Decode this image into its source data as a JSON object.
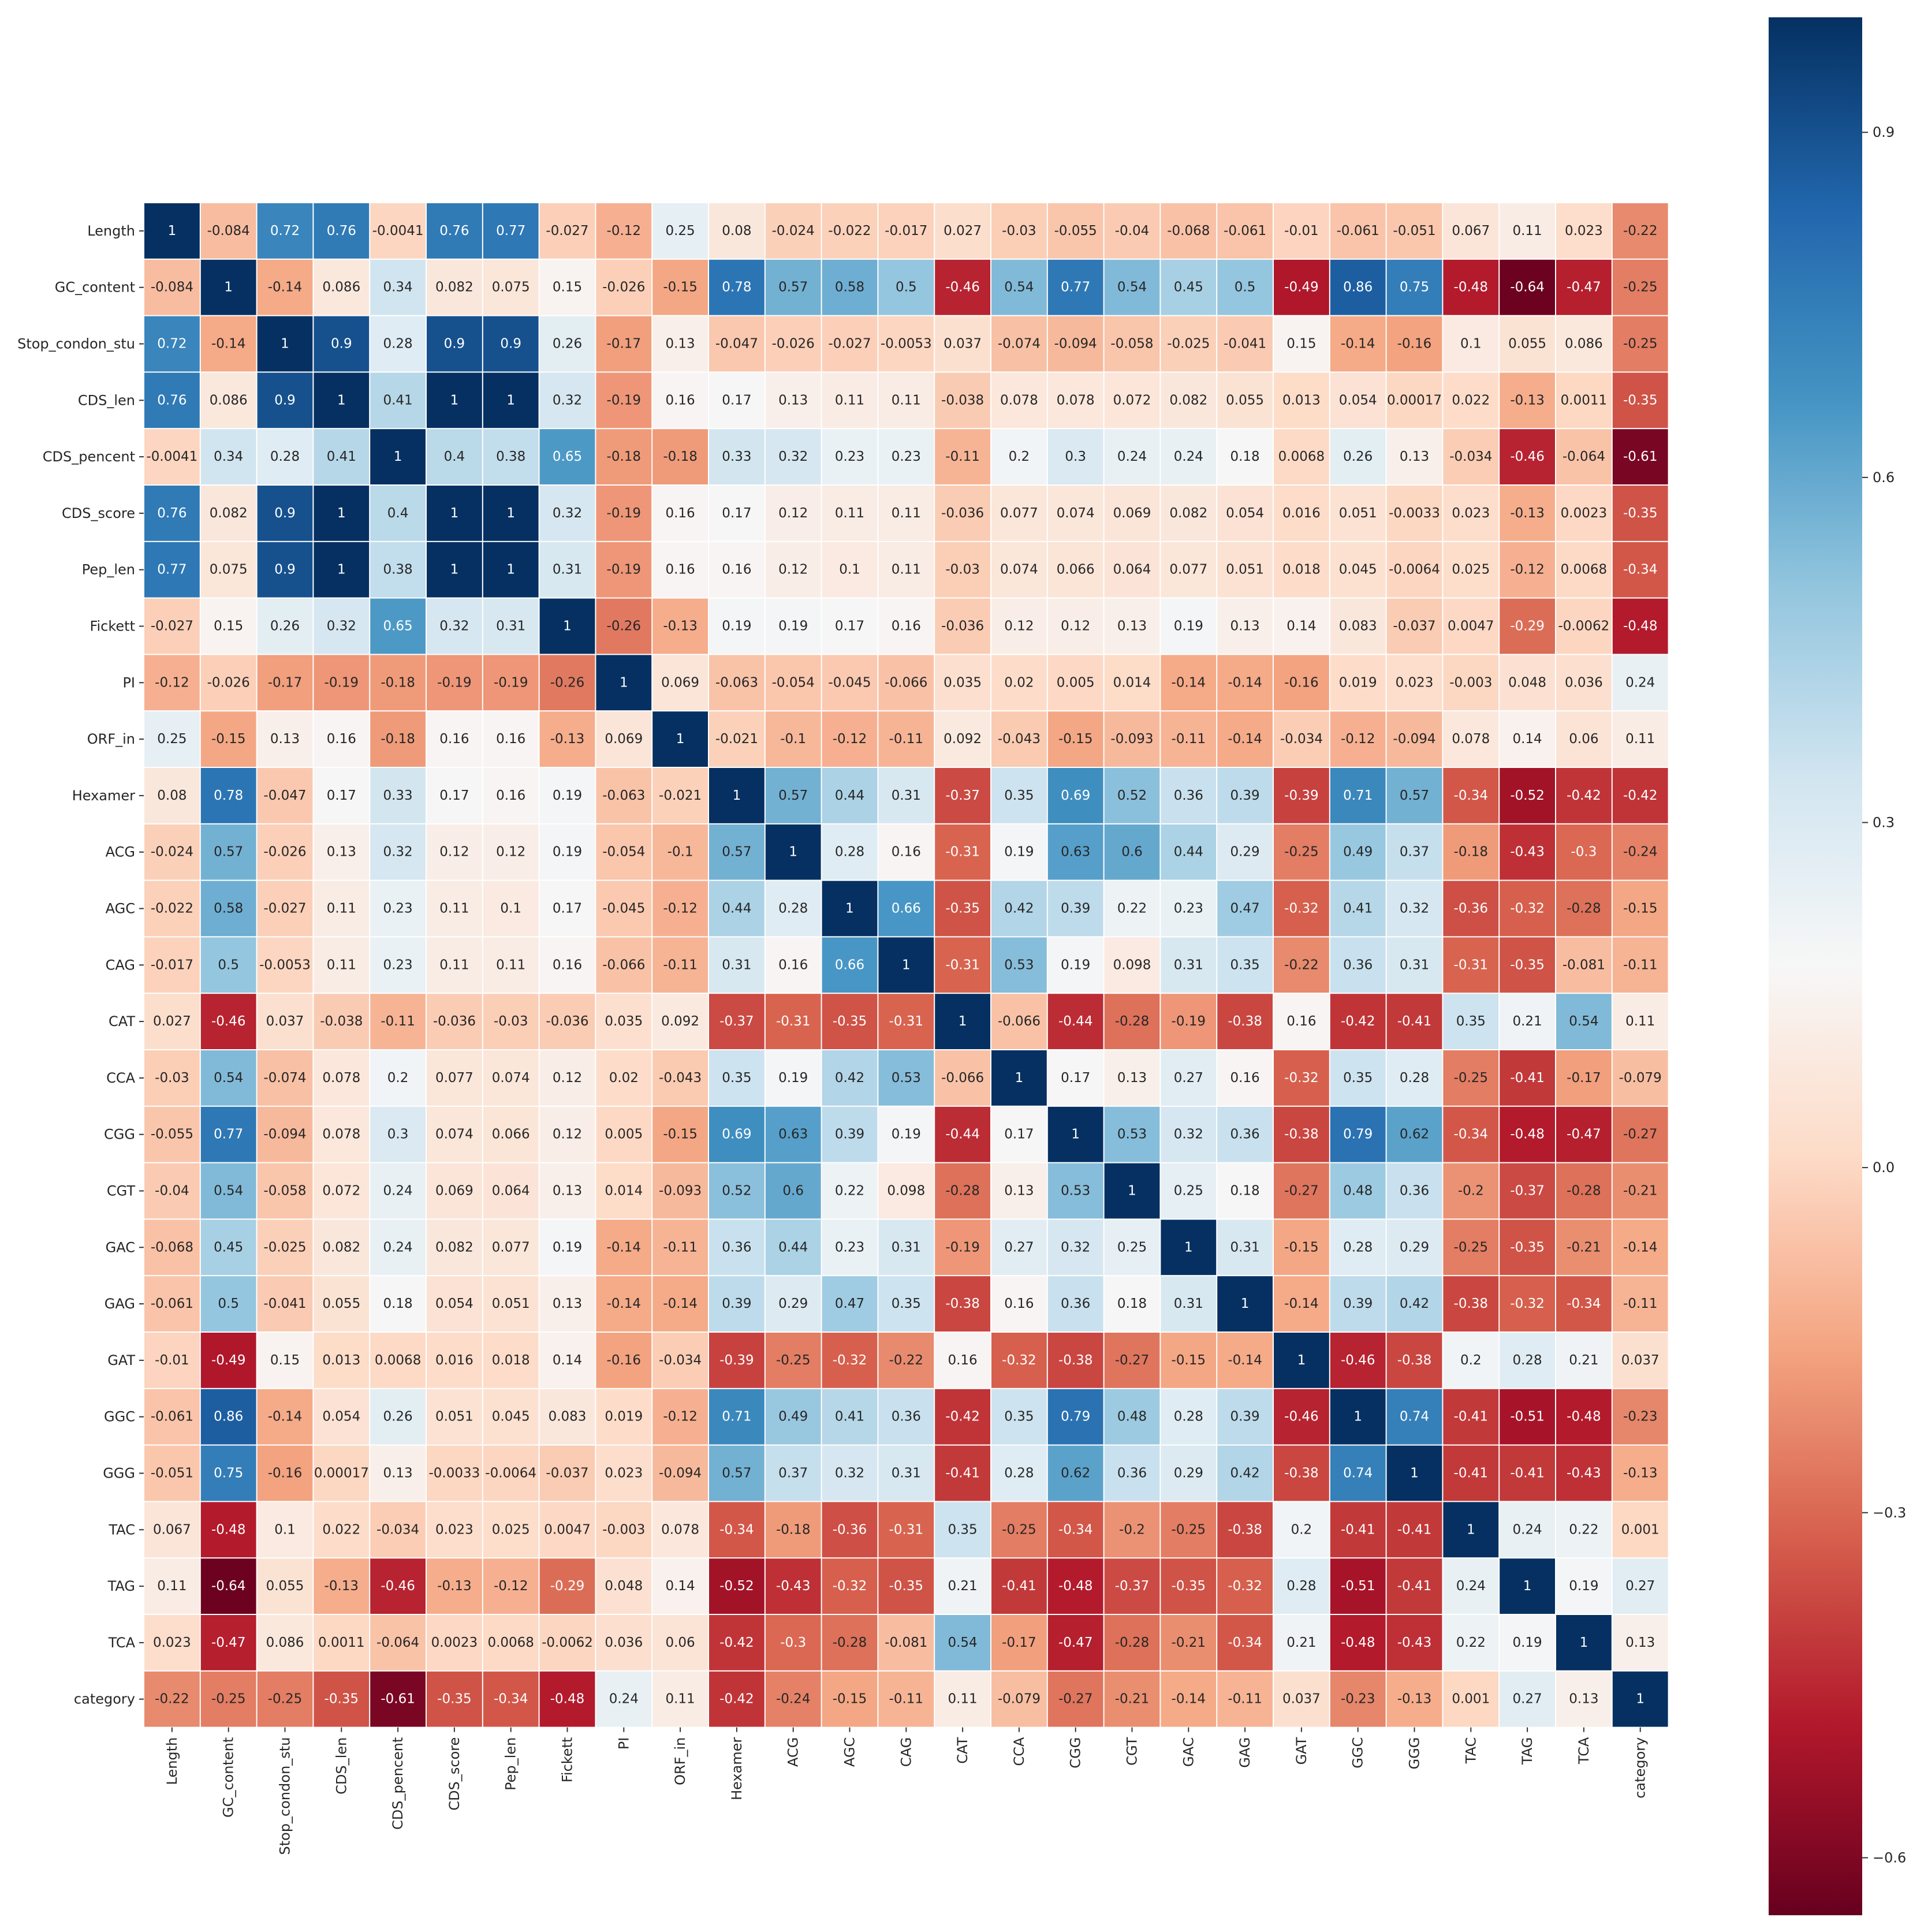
{
  "chart_data": {
    "type": "heatmap",
    "title": "",
    "xlabel": "",
    "ylabel": "",
    "colormap": "RdBu",
    "vmin": -0.65,
    "vmax": 1.0,
    "colorbar_ticks": [
      0.9,
      0.6,
      0.3,
      0.0,
      -0.3,
      -0.6
    ],
    "colorbar_tick_labels": [
      "0.9",
      "0.6",
      "0.3",
      "0.0",
      "−0.3",
      "−0.6"
    ],
    "labels": [
      "Length",
      "GC_content",
      "Stop_condon_stu",
      "CDS_len",
      "CDS_pencent",
      "CDS_score",
      "Pep_len",
      "Fickett",
      "PI",
      "ORF_in",
      "Hexamer",
      "ACG",
      "AGC",
      "CAG",
      "CAT",
      "CCA",
      "CGG",
      "CGT",
      "GAC",
      "GAG",
      "GAT",
      "GGC",
      "GGG",
      "TAC",
      "TAG",
      "TCA",
      "category"
    ],
    "matrix": [
      [
        "1",
        "-0.084",
        "0.72",
        "0.76",
        "-0.0041",
        "0.76",
        "0.77",
        "-0.027",
        "-0.12",
        "0.25",
        "0.08",
        "-0.024",
        "-0.022",
        "-0.017",
        "0.027",
        "-0.03",
        "-0.055",
        "-0.04",
        "-0.068",
        "-0.061",
        "-0.01",
        "-0.061",
        "-0.051",
        "0.067",
        "0.11",
        "0.023",
        "-0.22"
      ],
      [
        "-0.084",
        "1",
        "-0.14",
        "0.086",
        "0.34",
        "0.082",
        "0.075",
        "0.15",
        "-0.026",
        "-0.15",
        "0.78",
        "0.57",
        "0.58",
        "0.5",
        "-0.46",
        "0.54",
        "0.77",
        "0.54",
        "0.45",
        "0.5",
        "-0.49",
        "0.86",
        "0.75",
        "-0.48",
        "-0.64",
        "-0.47",
        "-0.25"
      ],
      [
        "0.72",
        "-0.14",
        "1",
        "0.9",
        "0.28",
        "0.9",
        "0.9",
        "0.26",
        "-0.17",
        "0.13",
        "-0.047",
        "-0.026",
        "-0.027",
        "-0.0053",
        "0.037",
        "-0.074",
        "-0.094",
        "-0.058",
        "-0.025",
        "-0.041",
        "0.15",
        "-0.14",
        "-0.16",
        "0.1",
        "0.055",
        "0.086",
        "-0.25"
      ],
      [
        "0.76",
        "0.086",
        "0.9",
        "1",
        "0.41",
        "1",
        "1",
        "0.32",
        "-0.19",
        "0.16",
        "0.17",
        "0.13",
        "0.11",
        "0.11",
        "-0.038",
        "0.078",
        "0.078",
        "0.072",
        "0.082",
        "0.055",
        "0.013",
        "0.054",
        "0.00017",
        "0.022",
        "-0.13",
        "0.0011",
        "-0.35"
      ],
      [
        "-0.0041",
        "0.34",
        "0.28",
        "0.41",
        "1",
        "0.4",
        "0.38",
        "0.65",
        "-0.18",
        "-0.18",
        "0.33",
        "0.32",
        "0.23",
        "0.23",
        "-0.11",
        "0.2",
        "0.3",
        "0.24",
        "0.24",
        "0.18",
        "0.0068",
        "0.26",
        "0.13",
        "-0.034",
        "-0.46",
        "-0.064",
        "-0.61"
      ],
      [
        "0.76",
        "0.082",
        "0.9",
        "1",
        "0.4",
        "1",
        "1",
        "0.32",
        "-0.19",
        "0.16",
        "0.17",
        "0.12",
        "0.11",
        "0.11",
        "-0.036",
        "0.077",
        "0.074",
        "0.069",
        "0.082",
        "0.054",
        "0.016",
        "0.051",
        "-0.0033",
        "0.023",
        "-0.13",
        "0.0023",
        "-0.35"
      ],
      [
        "0.77",
        "0.075",
        "0.9",
        "1",
        "0.38",
        "1",
        "1",
        "0.31",
        "-0.19",
        "0.16",
        "0.16",
        "0.12",
        "0.1",
        "0.11",
        "-0.03",
        "0.074",
        "0.066",
        "0.064",
        "0.077",
        "0.051",
        "0.018",
        "0.045",
        "-0.0064",
        "0.025",
        "-0.12",
        "0.0068",
        "-0.34"
      ],
      [
        "-0.027",
        "0.15",
        "0.26",
        "0.32",
        "0.65",
        "0.32",
        "0.31",
        "1",
        "-0.26",
        "-0.13",
        "0.19",
        "0.19",
        "0.17",
        "0.16",
        "-0.036",
        "0.12",
        "0.12",
        "0.13",
        "0.19",
        "0.13",
        "0.14",
        "0.083",
        "-0.037",
        "0.0047",
        "-0.29",
        "-0.0062",
        "-0.48"
      ],
      [
        "-0.12",
        "-0.026",
        "-0.17",
        "-0.19",
        "-0.18",
        "-0.19",
        "-0.19",
        "-0.26",
        "1",
        "0.069",
        "-0.063",
        "-0.054",
        "-0.045",
        "-0.066",
        "0.035",
        "0.02",
        "0.005",
        "0.014",
        "-0.14",
        "-0.14",
        "-0.16",
        "0.019",
        "0.023",
        "-0.003",
        "0.048",
        "0.036",
        "0.24"
      ],
      [
        "0.25",
        "-0.15",
        "0.13",
        "0.16",
        "-0.18",
        "0.16",
        "0.16",
        "-0.13",
        "0.069",
        "1",
        "-0.021",
        "-0.1",
        "-0.12",
        "-0.11",
        "0.092",
        "-0.043",
        "-0.15",
        "-0.093",
        "-0.11",
        "-0.14",
        "-0.034",
        "-0.12",
        "-0.094",
        "0.078",
        "0.14",
        "0.06",
        "0.11"
      ],
      [
        "0.08",
        "0.78",
        "-0.047",
        "0.17",
        "0.33",
        "0.17",
        "0.16",
        "0.19",
        "-0.063",
        "-0.021",
        "1",
        "0.57",
        "0.44",
        "0.31",
        "-0.37",
        "0.35",
        "0.69",
        "0.52",
        "0.36",
        "0.39",
        "-0.39",
        "0.71",
        "0.57",
        "-0.34",
        "-0.52",
        "-0.42",
        "-0.42"
      ],
      [
        "-0.024",
        "0.57",
        "-0.026",
        "0.13",
        "0.32",
        "0.12",
        "0.12",
        "0.19",
        "-0.054",
        "-0.1",
        "0.57",
        "1",
        "0.28",
        "0.16",
        "-0.31",
        "0.19",
        "0.63",
        "0.6",
        "0.44",
        "0.29",
        "-0.25",
        "0.49",
        "0.37",
        "-0.18",
        "-0.43",
        "-0.3",
        "-0.24"
      ],
      [
        "-0.022",
        "0.58",
        "-0.027",
        "0.11",
        "0.23",
        "0.11",
        "0.1",
        "0.17",
        "-0.045",
        "-0.12",
        "0.44",
        "0.28",
        "1",
        "0.66",
        "-0.35",
        "0.42",
        "0.39",
        "0.22",
        "0.23",
        "0.47",
        "-0.32",
        "0.41",
        "0.32",
        "-0.36",
        "-0.32",
        "-0.28",
        "-0.15"
      ],
      [
        "-0.017",
        "0.5",
        "-0.0053",
        "0.11",
        "0.23",
        "0.11",
        "0.11",
        "0.16",
        "-0.066",
        "-0.11",
        "0.31",
        "0.16",
        "0.66",
        "1",
        "-0.31",
        "0.53",
        "0.19",
        "0.098",
        "0.31",
        "0.35",
        "-0.22",
        "0.36",
        "0.31",
        "-0.31",
        "-0.35",
        "-0.081",
        "-0.11"
      ],
      [
        "0.027",
        "-0.46",
        "0.037",
        "-0.038",
        "-0.11",
        "-0.036",
        "-0.03",
        "-0.036",
        "0.035",
        "0.092",
        "-0.37",
        "-0.31",
        "-0.35",
        "-0.31",
        "1",
        "-0.066",
        "-0.44",
        "-0.28",
        "-0.19",
        "-0.38",
        "0.16",
        "-0.42",
        "-0.41",
        "0.35",
        "0.21",
        "0.54",
        "0.11"
      ],
      [
        "-0.03",
        "0.54",
        "-0.074",
        "0.078",
        "0.2",
        "0.077",
        "0.074",
        "0.12",
        "0.02",
        "-0.043",
        "0.35",
        "0.19",
        "0.42",
        "0.53",
        "-0.066",
        "1",
        "0.17",
        "0.13",
        "0.27",
        "0.16",
        "-0.32",
        "0.35",
        "0.28",
        "-0.25",
        "-0.41",
        "-0.17",
        "-0.079"
      ],
      [
        "-0.055",
        "0.77",
        "-0.094",
        "0.078",
        "0.3",
        "0.074",
        "0.066",
        "0.12",
        "0.005",
        "-0.15",
        "0.69",
        "0.63",
        "0.39",
        "0.19",
        "-0.44",
        "0.17",
        "1",
        "0.53",
        "0.32",
        "0.36",
        "-0.38",
        "0.79",
        "0.62",
        "-0.34",
        "-0.48",
        "-0.47",
        "-0.27"
      ],
      [
        "-0.04",
        "0.54",
        "-0.058",
        "0.072",
        "0.24",
        "0.069",
        "0.064",
        "0.13",
        "0.014",
        "-0.093",
        "0.52",
        "0.6",
        "0.22",
        "0.098",
        "-0.28",
        "0.13",
        "0.53",
        "1",
        "0.25",
        "0.18",
        "-0.27",
        "0.48",
        "0.36",
        "-0.2",
        "-0.37",
        "-0.28",
        "-0.21"
      ],
      [
        "-0.068",
        "0.45",
        "-0.025",
        "0.082",
        "0.24",
        "0.082",
        "0.077",
        "0.19",
        "-0.14",
        "-0.11",
        "0.36",
        "0.44",
        "0.23",
        "0.31",
        "-0.19",
        "0.27",
        "0.32",
        "0.25",
        "1",
        "0.31",
        "-0.15",
        "0.28",
        "0.29",
        "-0.25",
        "-0.35",
        "-0.21",
        "-0.14"
      ],
      [
        "-0.061",
        "0.5",
        "-0.041",
        "0.055",
        "0.18",
        "0.054",
        "0.051",
        "0.13",
        "-0.14",
        "-0.14",
        "0.39",
        "0.29",
        "0.47",
        "0.35",
        "-0.38",
        "0.16",
        "0.36",
        "0.18",
        "0.31",
        "1",
        "-0.14",
        "0.39",
        "0.42",
        "-0.38",
        "-0.32",
        "-0.34",
        "-0.11"
      ],
      [
        "-0.01",
        "-0.49",
        "0.15",
        "0.013",
        "0.0068",
        "0.016",
        "0.018",
        "0.14",
        "-0.16",
        "-0.034",
        "-0.39",
        "-0.25",
        "-0.32",
        "-0.22",
        "0.16",
        "-0.32",
        "-0.38",
        "-0.27",
        "-0.15",
        "-0.14",
        "1",
        "-0.46",
        "-0.38",
        "0.2",
        "0.28",
        "0.21",
        "0.037"
      ],
      [
        "-0.061",
        "0.86",
        "-0.14",
        "0.054",
        "0.26",
        "0.051",
        "0.045",
        "0.083",
        "0.019",
        "-0.12",
        "0.71",
        "0.49",
        "0.41",
        "0.36",
        "-0.42",
        "0.35",
        "0.79",
        "0.48",
        "0.28",
        "0.39",
        "-0.46",
        "1",
        "0.74",
        "-0.41",
        "-0.51",
        "-0.48",
        "-0.23"
      ],
      [
        "-0.051",
        "0.75",
        "-0.16",
        "0.00017",
        "0.13",
        "-0.0033",
        "-0.0064",
        "-0.037",
        "0.023",
        "-0.094",
        "0.57",
        "0.37",
        "0.32",
        "0.31",
        "-0.41",
        "0.28",
        "0.62",
        "0.36",
        "0.29",
        "0.42",
        "-0.38",
        "0.74",
        "1",
        "-0.41",
        "-0.41",
        "-0.43",
        "-0.13"
      ],
      [
        "0.067",
        "-0.48",
        "0.1",
        "0.022",
        "-0.034",
        "0.023",
        "0.025",
        "0.0047",
        "-0.003",
        "0.078",
        "-0.34",
        "-0.18",
        "-0.36",
        "-0.31",
        "0.35",
        "-0.25",
        "-0.34",
        "-0.2",
        "-0.25",
        "-0.38",
        "0.2",
        "-0.41",
        "-0.41",
        "1",
        "0.24",
        "0.22",
        "0.001"
      ],
      [
        "0.11",
        "-0.64",
        "0.055",
        "-0.13",
        "-0.46",
        "-0.13",
        "-0.12",
        "-0.29",
        "0.048",
        "0.14",
        "-0.52",
        "-0.43",
        "-0.32",
        "-0.35",
        "0.21",
        "-0.41",
        "-0.48",
        "-0.37",
        "-0.35",
        "-0.32",
        "0.28",
        "-0.51",
        "-0.41",
        "0.24",
        "1",
        "0.19",
        "0.27"
      ],
      [
        "0.023",
        "-0.47",
        "0.086",
        "0.0011",
        "-0.064",
        "0.0023",
        "0.0068",
        "-0.0062",
        "0.036",
        "0.06",
        "-0.42",
        "-0.3",
        "-0.28",
        "-0.081",
        "0.54",
        "-0.17",
        "-0.47",
        "-0.28",
        "-0.21",
        "-0.34",
        "0.21",
        "-0.48",
        "-0.43",
        "0.22",
        "0.19",
        "1",
        "0.13"
      ],
      [
        "-0.22",
        "-0.25",
        "-0.25",
        "-0.35",
        "-0.61",
        "-0.35",
        "-0.34",
        "-0.48",
        "0.24",
        "0.11",
        "-0.42",
        "-0.24",
        "-0.15",
        "-0.11",
        "0.11",
        "-0.079",
        "-0.27",
        "-0.21",
        "-0.14",
        "-0.11",
        "0.037",
        "-0.23",
        "-0.13",
        "0.001",
        "0.27",
        "0.13",
        "1"
      ]
    ]
  }
}
